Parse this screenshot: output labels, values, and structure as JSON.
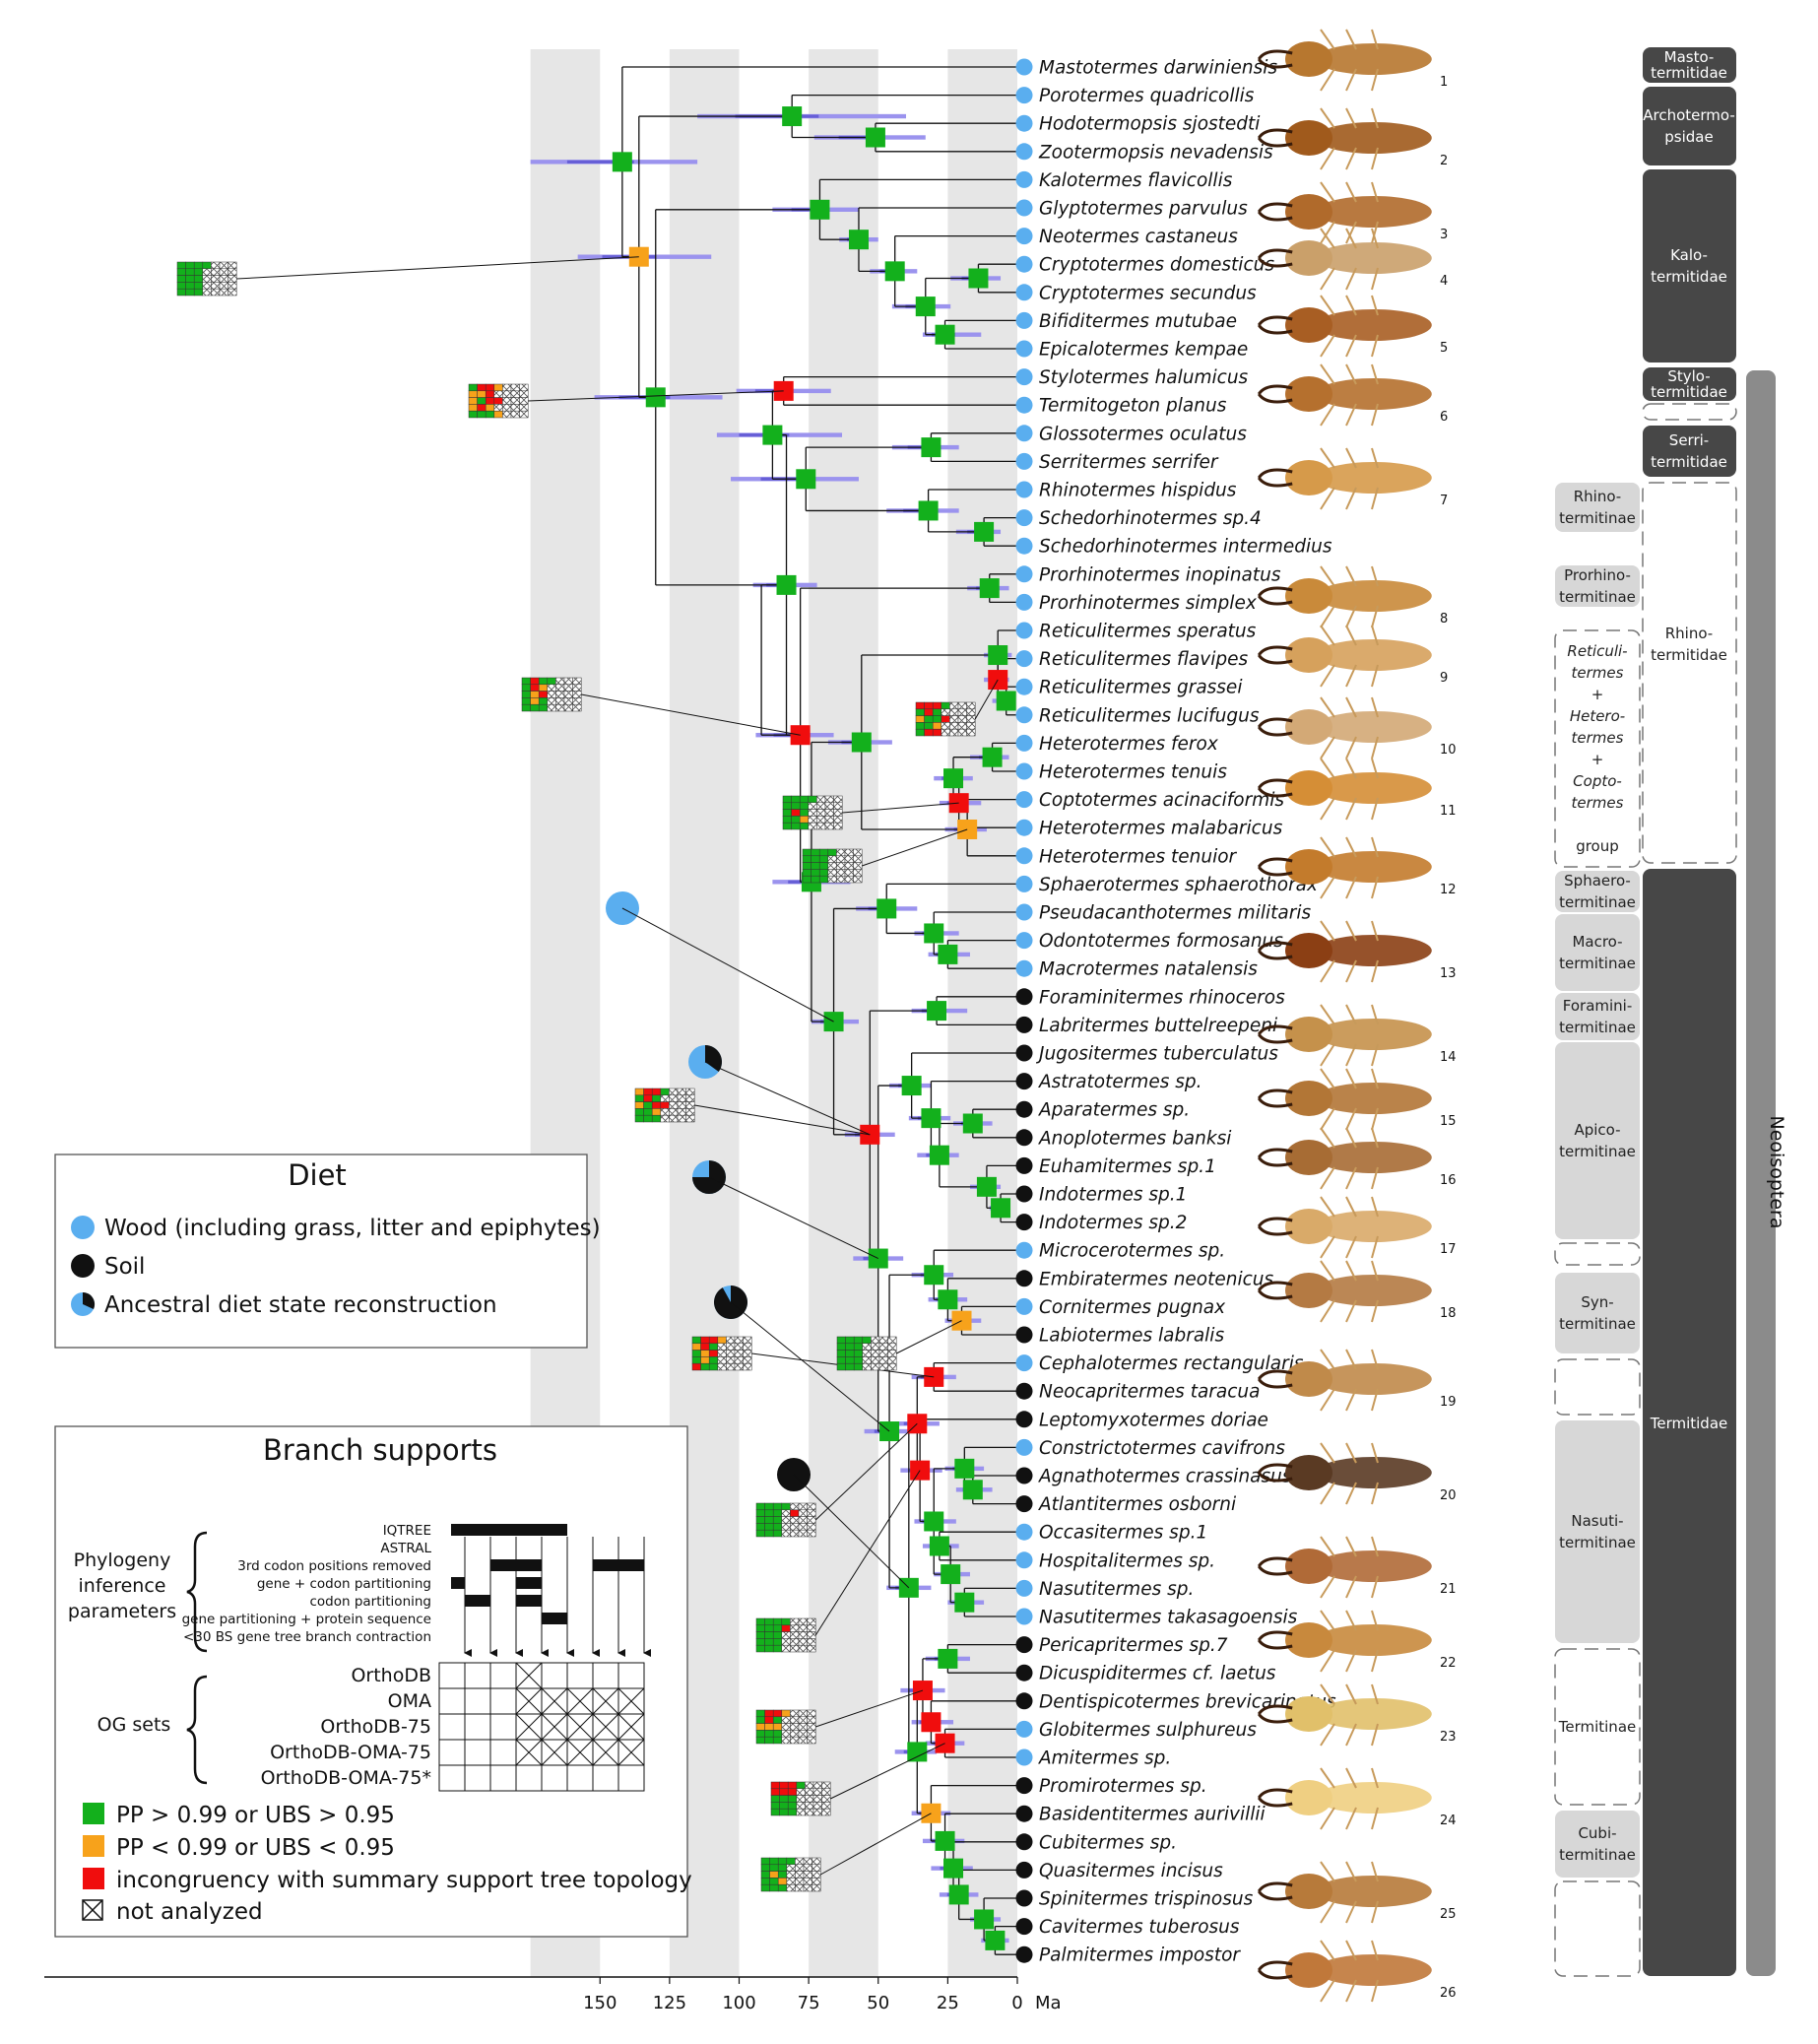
{
  "axis": {
    "ticks": [
      "150",
      "125",
      "100",
      "75",
      "50",
      "25",
      "0"
    ],
    "unit": "Ma"
  },
  "taxa": [
    {
      "name": "Mastotermes darwiniensis",
      "diet": "wood"
    },
    {
      "name": "Porotermes quadricollis",
      "diet": "wood"
    },
    {
      "name": "Hodotermopsis sjostedti",
      "diet": "wood"
    },
    {
      "name": "Zootermopsis nevadensis",
      "diet": "wood"
    },
    {
      "name": "Kalotermes flavicollis",
      "diet": "wood"
    },
    {
      "name": "Glyptotermes parvulus",
      "diet": "wood"
    },
    {
      "name": "Neotermes castaneus",
      "diet": "wood"
    },
    {
      "name": "Cryptotermes domesticus",
      "diet": "wood"
    },
    {
      "name": "Cryptotermes secundus",
      "diet": "wood"
    },
    {
      "name": "Bifiditermes mutubae",
      "diet": "wood"
    },
    {
      "name": "Epicalotermes kempae",
      "diet": "wood"
    },
    {
      "name": "Stylotermes halumicus",
      "diet": "wood"
    },
    {
      "name": "Termitogeton planus",
      "diet": "wood"
    },
    {
      "name": "Glossotermes oculatus",
      "diet": "wood"
    },
    {
      "name": "Serritermes serrifer",
      "diet": "wood"
    },
    {
      "name": "Rhinotermes hispidus",
      "diet": "wood"
    },
    {
      "name": "Schedorhinotermes sp.4",
      "diet": "wood"
    },
    {
      "name": "Schedorhinotermes intermedius",
      "diet": "wood"
    },
    {
      "name": "Prorhinotermes inopinatus",
      "diet": "wood"
    },
    {
      "name": "Prorhinotermes simplex",
      "diet": "wood"
    },
    {
      "name": "Reticulitermes speratus",
      "diet": "wood"
    },
    {
      "name": "Reticulitermes flavipes",
      "diet": "wood"
    },
    {
      "name": "Reticulitermes grassei",
      "diet": "wood"
    },
    {
      "name": "Reticulitermes lucifugus",
      "diet": "wood"
    },
    {
      "name": "Heterotermes ferox",
      "diet": "wood"
    },
    {
      "name": "Heterotermes tenuis",
      "diet": "wood"
    },
    {
      "name": "Coptotermes acinaciformis",
      "diet": "wood"
    },
    {
      "name": "Heterotermes malabaricus",
      "diet": "wood"
    },
    {
      "name": "Heterotermes tenuior",
      "diet": "wood"
    },
    {
      "name": "Sphaerotermes sphaerothorax",
      "diet": "wood"
    },
    {
      "name": "Pseudacanthotermes militaris",
      "diet": "wood"
    },
    {
      "name": "Odontotermes formosanus",
      "diet": "wood"
    },
    {
      "name": "Macrotermes natalensis",
      "diet": "wood"
    },
    {
      "name": "Foraminitermes rhinoceros",
      "diet": "soil"
    },
    {
      "name": "Labritermes buttelreepeni",
      "diet": "soil"
    },
    {
      "name": "Jugositermes tuberculatus",
      "diet": "soil"
    },
    {
      "name": "Astratotermes sp.",
      "diet": "soil"
    },
    {
      "name": "Aparatermes sp.",
      "diet": "soil"
    },
    {
      "name": "Anoplotermes banksi",
      "diet": "soil"
    },
    {
      "name": "Euhamitermes sp.1",
      "diet": "soil"
    },
    {
      "name": "Indotermes sp.1",
      "diet": "soil"
    },
    {
      "name": "Indotermes sp.2",
      "diet": "soil"
    },
    {
      "name": "Microcerotermes sp.",
      "diet": "wood"
    },
    {
      "name": "Embiratermes neotenicus",
      "diet": "soil"
    },
    {
      "name": "Cornitermes pugnax",
      "diet": "wood"
    },
    {
      "name": "Labiotermes labralis",
      "diet": "soil"
    },
    {
      "name": "Cephalotermes rectangularis",
      "diet": "wood"
    },
    {
      "name": "Neocapritermes taracua",
      "diet": "soil"
    },
    {
      "name": "Leptomyxotermes doriae",
      "diet": "soil"
    },
    {
      "name": "Constrictotermes cavifrons",
      "diet": "wood"
    },
    {
      "name": "Agnathotermes crassinasus",
      "diet": "soil"
    },
    {
      "name": "Atlantitermes osborni",
      "diet": "soil"
    },
    {
      "name": "Occasitermes sp.1",
      "diet": "wood"
    },
    {
      "name": "Hospitalitermes sp.",
      "diet": "wood"
    },
    {
      "name": "Nasutitermes sp.",
      "diet": "wood"
    },
    {
      "name": "Nasutitermes takasagoensis",
      "diet": "wood"
    },
    {
      "name": "Pericapritermes sp.7",
      "diet": "soil"
    },
    {
      "name": "Dicuspiditermes cf. laetus",
      "diet": "soil"
    },
    {
      "name": "Dentispicotermes brevicarinatus",
      "diet": "soil"
    },
    {
      "name": "Globitermes sulphureus",
      "diet": "wood"
    },
    {
      "name": "Amitermes sp.",
      "diet": "wood"
    },
    {
      "name": "Promirotermes sp.",
      "diet": "soil"
    },
    {
      "name": "Basidentitermes aurivillii",
      "diet": "soil"
    },
    {
      "name": "Cubitermes sp.",
      "diet": "soil"
    },
    {
      "name": "Quasitermes incisus",
      "diet": "soil"
    },
    {
      "name": "Spinitermes trispinosus",
      "diet": "soil"
    },
    {
      "name": "Cavitermes tuberosus",
      "diet": "soil"
    },
    {
      "name": "Palmitermes impostor",
      "diet": "soil"
    }
  ],
  "photo_numbers": [
    "1",
    "2",
    "3",
    "4",
    "5",
    "6",
    "7",
    "8",
    "9",
    "10",
    "11",
    "12",
    "13",
    "14",
    "15",
    "16",
    "17",
    "18",
    "19",
    "20",
    "21",
    "22",
    "23",
    "24",
    "25",
    "26"
  ],
  "families": [
    {
      "lines": [
        "Masto-",
        "termitidae"
      ]
    },
    {
      "lines": [
        "Archotermo-",
        "psidae"
      ]
    },
    {
      "lines": [
        "Kalo-",
        "termitidae"
      ]
    },
    {
      "lines": [
        "Stylo-",
        "termitidae"
      ]
    },
    {
      "lines": [
        "Serri-",
        "termitidae"
      ]
    },
    {
      "lines": [
        "Rhino-",
        "termitidae"
      ]
    },
    {
      "lines": [
        "Termitidae"
      ]
    }
  ],
  "subfamilies": [
    {
      "lines": [
        "Rhino-",
        "termitinae"
      ]
    },
    {
      "lines": [
        "Prorhino-",
        "termitinae"
      ]
    },
    {
      "lines": [
        "Reticuli-",
        "termes",
        "+",
        "Hetero-",
        "termes",
        "+",
        "Copto-",
        "termes",
        "",
        "group"
      ]
    },
    {
      "lines": [
        "Sphaero-",
        "termitinae"
      ]
    },
    {
      "lines": [
        "Macro-",
        "termitinae"
      ]
    },
    {
      "lines": [
        "Foramini-",
        "termitinae"
      ]
    },
    {
      "lines": [
        "Apico-",
        "termitinae"
      ]
    },
    {
      "lines": [
        "Syn-",
        "termitinae"
      ]
    },
    {
      "lines": [
        "Nasuti-",
        "termitinae"
      ]
    },
    {
      "lines": [
        "Termitinae"
      ]
    },
    {
      "lines": [
        "Cubi-",
        "termitinae"
      ]
    }
  ],
  "clade_label": "Neoisoptera",
  "diet_legend": {
    "title": "Diet",
    "items": [
      "Wood (including grass, litter and epiphytes)",
      "Soil",
      "Ancestral diet state reconstruction"
    ]
  },
  "branch_supports": {
    "title": "Branch supports",
    "group1": [
      "Phylogeny",
      "inference",
      "parameters"
    ],
    "params": [
      "IQTREE",
      "ASTRAL",
      "3rd codon positions removed",
      "gene + codon partitioning",
      "codon partitioning",
      "gene partitioning + protein sequence",
      "<30 BS gene tree branch contraction"
    ],
    "group2": "OG sets",
    "og_sets": [
      "OrthoDB",
      "OMA",
      "OrthoDB-75",
      "OrthoDB-OMA-75",
      "OrthoDB-OMA-75*"
    ],
    "legend": [
      "PP > 0.99 or UBS > 0.95",
      "PP < 0.99 or UBS < 0.95",
      "incongruency with summary support tree topology",
      "not analyzed"
    ]
  },
  "colors": {
    "wood": "#5aaeef",
    "soil": "#111111",
    "support_high": "#13b01c",
    "support_low": "#f7a21b",
    "incongruent": "#f00d0d",
    "hpd": "#9b93ee",
    "stripe": "#e6e6e6",
    "family_box": "#474747",
    "subfamily_box": "#d7d7d7"
  }
}
